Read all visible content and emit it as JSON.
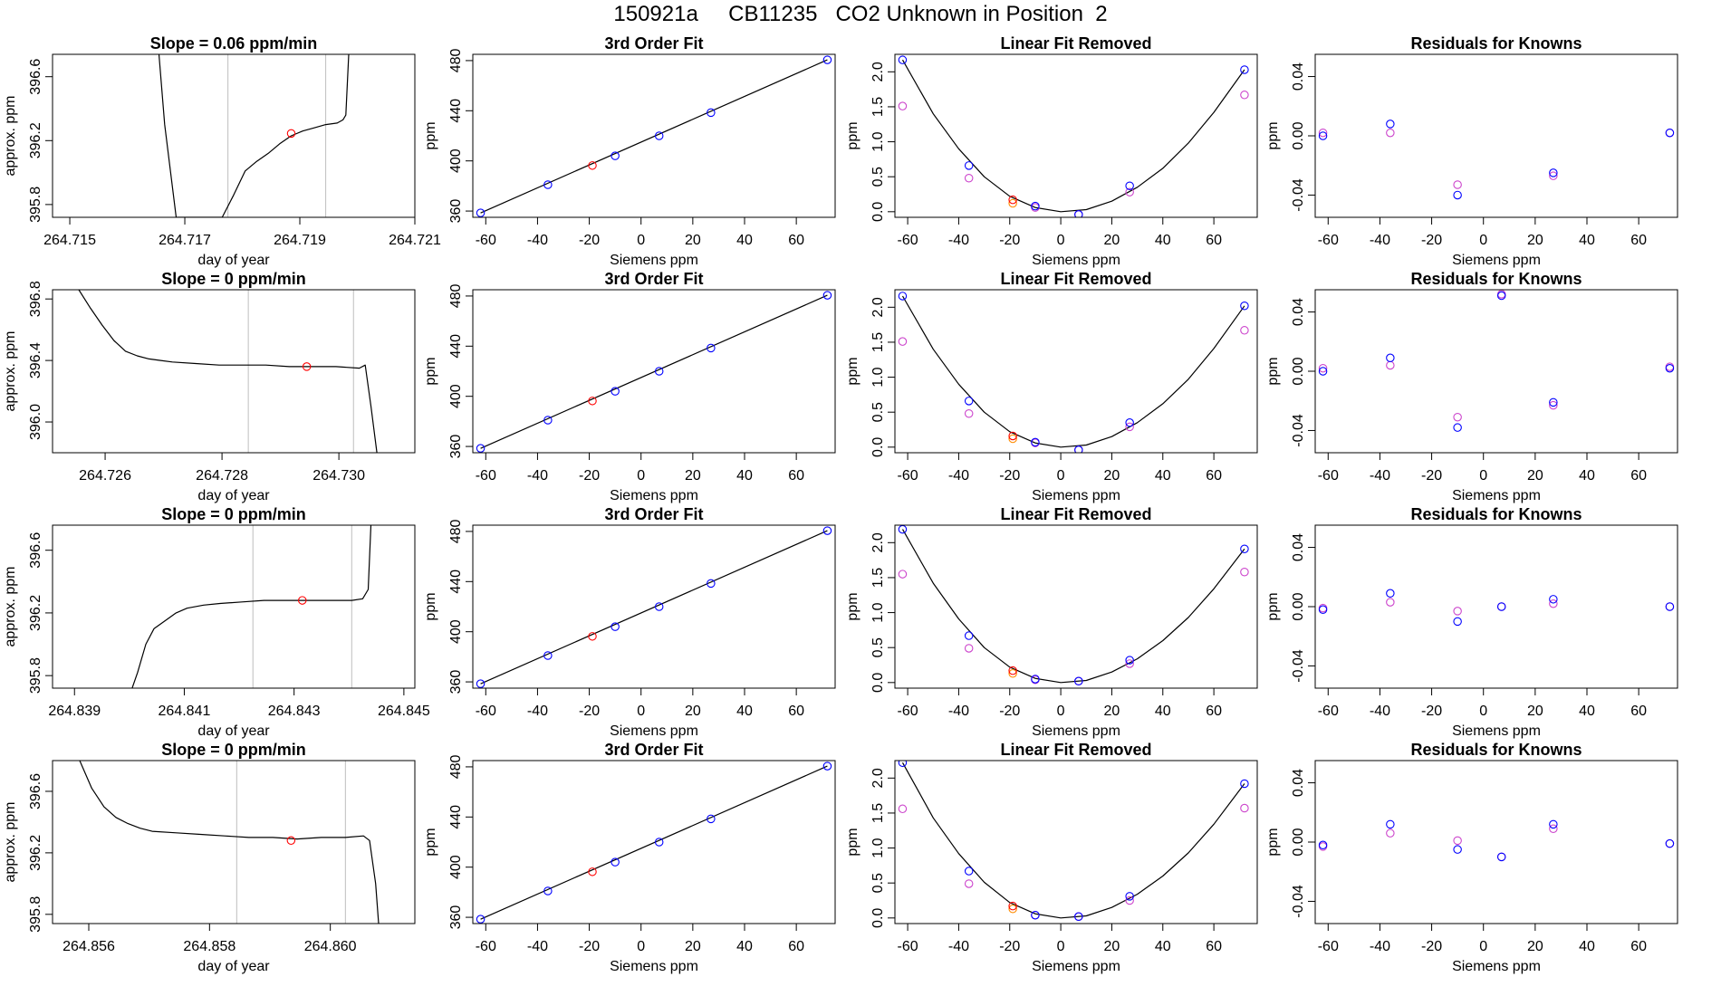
{
  "figure_title": "150921a     CB11235   CO2 Unknown in Position  2",
  "colors": {
    "trace": "#000000",
    "gridline": "#bebebe",
    "known": "#0000ff",
    "known_alt": "#cc44cc",
    "unknown": "#ff0000",
    "unknown_alt": "#ff8c00",
    "fit_line": "#000000"
  },
  "chart_data": [
    {
      "type": "line",
      "title": "Slope =  0.06  ppm/min",
      "xlabel": "day of year",
      "ylabel": "approx. ppm",
      "xlim": [
        264.7147,
        264.721
      ],
      "ylim": [
        395.72,
        396.74
      ],
      "xticks": [
        "264.715",
        "264.717",
        "264.719",
        "264.721"
      ],
      "yticks": [
        "395.8",
        "396.2",
        "396.6"
      ],
      "vlines": [
        264.71775,
        264.71945
      ],
      "marker": {
        "x": 264.71885,
        "y": 396.245
      },
      "trace_x": [
        264.71655,
        264.71665,
        264.71685,
        264.71705,
        264.71725,
        264.71745,
        264.71765,
        264.71785,
        264.71805,
        264.71825,
        264.71845,
        264.71865,
        264.71885,
        264.71905,
        264.71925,
        264.71945,
        264.71965,
        264.71975,
        264.7198,
        264.71985
      ],
      "trace_y": [
        396.74,
        396.3,
        395.72,
        395.72,
        395.72,
        395.72,
        395.72,
        395.86,
        396.01,
        396.07,
        396.12,
        396.18,
        396.23,
        396.26,
        396.28,
        396.3,
        396.31,
        396.33,
        396.36,
        396.74
      ]
    },
    {
      "type": "scatter",
      "title": "3rd Order Fit",
      "xlabel": "Siemens ppm",
      "ylabel": "ppm",
      "xlim": [
        -65,
        75
      ],
      "ylim": [
        355,
        485
      ],
      "xticks": [
        "-60",
        "-40",
        "-20",
        "0",
        "20",
        "40",
        "60"
      ],
      "yticks": [
        "360",
        "400",
        "440",
        "480"
      ],
      "fit_line": {
        "x": [
          -62,
          72
        ],
        "y": [
          358.5,
          480.6
        ]
      },
      "knowns": {
        "x": [
          -62,
          -36,
          -10,
          7,
          27,
          72
        ],
        "y": [
          358.5,
          381,
          404,
          420,
          438.5,
          480.6
        ]
      },
      "unknowns": {
        "x": [
          -18.8
        ],
        "y": [
          396.3
        ]
      }
    },
    {
      "type": "scatter",
      "title": "Linear Fit Removed",
      "xlabel": "Siemens ppm",
      "ylabel": "ppm",
      "xlim": [
        -65,
        77
      ],
      "ylim": [
        -0.08,
        2.25
      ],
      "xticks": [
        "-60",
        "-40",
        "-20",
        "0",
        "20",
        "40",
        "60"
      ],
      "yticks": [
        "0.0",
        "0.5",
        "1.0",
        "1.5",
        "2.0"
      ],
      "curve": {
        "x": [
          -62,
          -50,
          -40,
          -30,
          -20,
          -10,
          0,
          10,
          20,
          30,
          40,
          50,
          60,
          72
        ],
        "y": [
          2.17,
          1.4,
          0.9,
          0.5,
          0.22,
          0.06,
          0.0,
          0.03,
          0.15,
          0.35,
          0.62,
          0.98,
          1.42,
          2.03
        ]
      },
      "knowns": {
        "x": [
          -62,
          -36,
          -10,
          7,
          27,
          72
        ],
        "y": [
          2.17,
          0.66,
          0.08,
          -0.04,
          0.37,
          2.03
        ]
      },
      "knowns_alt": {
        "x": [
          -62,
          -36,
          -10,
          7,
          27,
          72
        ],
        "y": [
          1.51,
          0.48,
          0.06,
          -0.04,
          0.28,
          1.67
        ]
      },
      "unknowns": {
        "x": [
          -18.8
        ],
        "y": [
          0.17
        ]
      },
      "unknowns_alt": {
        "x": [
          -18.8
        ],
        "y": [
          0.12
        ]
      }
    },
    {
      "type": "scatter",
      "title": "Residuals for Knowns",
      "xlabel": "Siemens ppm",
      "ylabel": "ppm",
      "xlim": [
        -65,
        75
      ],
      "ylim": [
        -0.055,
        0.055
      ],
      "xticks": [
        "-60",
        "-40",
        "-20",
        "0",
        "20",
        "40",
        "60"
      ],
      "yticks": [
        "-0.04",
        "0.00",
        "0.04"
      ],
      "knowns": {
        "x": [
          -62,
          -36,
          -10,
          27,
          72
        ],
        "y": [
          0.0,
          0.008,
          -0.04,
          -0.025,
          0.002
        ]
      },
      "knowns_alt": {
        "x": [
          -62,
          -36,
          -10,
          27,
          72
        ],
        "y": [
          0.002,
          0.002,
          -0.033,
          -0.027,
          0.002
        ]
      }
    },
    {
      "type": "line",
      "title": "Slope =  0  ppm/min",
      "xlabel": "day of year",
      "ylabel": "approx. ppm",
      "xlim": [
        264.7251,
        264.7313
      ],
      "ylim": [
        395.8,
        396.86
      ],
      "xticks": [
        "264.726",
        "264.728",
        "264.730"
      ],
      "yticks": [
        "396.0",
        "396.4",
        "396.8"
      ],
      "vlines": [
        264.72845,
        264.73025
      ],
      "marker": {
        "x": 264.72945,
        "y": 396.36
      },
      "trace_x": [
        264.72555,
        264.72575,
        264.72595,
        264.72615,
        264.72635,
        264.72655,
        264.72675,
        264.72695,
        264.72715,
        264.72755,
        264.72795,
        264.72835,
        264.72875,
        264.72915,
        264.72955,
        264.72995,
        264.73035,
        264.73045,
        264.73055,
        264.73065
      ],
      "trace_y": [
        396.86,
        396.74,
        396.63,
        396.53,
        396.46,
        396.43,
        396.41,
        396.4,
        396.39,
        396.38,
        396.37,
        396.37,
        396.37,
        396.36,
        396.36,
        396.36,
        396.35,
        396.37,
        396.1,
        395.8
      ]
    },
    {
      "type": "scatter",
      "title": "3rd Order Fit",
      "xlabel": "Siemens ppm",
      "ylabel": "ppm",
      "xlim": [
        -65,
        75
      ],
      "ylim": [
        355,
        485
      ],
      "xticks": [
        "-60",
        "-40",
        "-20",
        "0",
        "20",
        "40",
        "60"
      ],
      "yticks": [
        "360",
        "400",
        "440",
        "480"
      ],
      "fit_line": {
        "x": [
          -62,
          72
        ],
        "y": [
          358.5,
          480.6
        ]
      },
      "knowns": {
        "x": [
          -62,
          -36,
          -10,
          7,
          27,
          72
        ],
        "y": [
          358.5,
          381,
          404,
          420,
          438.5,
          480.6
        ]
      },
      "unknowns": {
        "x": [
          -18.8
        ],
        "y": [
          396.3
        ]
      }
    },
    {
      "type": "scatter",
      "title": "Linear Fit Removed",
      "xlabel": "Siemens ppm",
      "ylabel": "ppm",
      "xlim": [
        -65,
        77
      ],
      "ylim": [
        -0.08,
        2.25
      ],
      "xticks": [
        "-60",
        "-40",
        "-20",
        "0",
        "20",
        "40",
        "60"
      ],
      "yticks": [
        "0.0",
        "0.5",
        "1.0",
        "1.5",
        "2.0"
      ],
      "curve": {
        "x": [
          -62,
          -50,
          -40,
          -30,
          -20,
          -10,
          0,
          10,
          20,
          30,
          40,
          50,
          60,
          72
        ],
        "y": [
          2.16,
          1.4,
          0.9,
          0.5,
          0.22,
          0.06,
          0.0,
          0.03,
          0.15,
          0.35,
          0.62,
          0.97,
          1.41,
          2.02
        ]
      },
      "knowns": {
        "x": [
          -62,
          -36,
          -10,
          7,
          27,
          72
        ],
        "y": [
          2.16,
          0.66,
          0.07,
          -0.04,
          0.35,
          2.02
        ]
      },
      "knowns_alt": {
        "x": [
          -62,
          -36,
          -10,
          7,
          27,
          72
        ],
        "y": [
          1.51,
          0.48,
          0.06,
          -0.04,
          0.29,
          1.67
        ]
      },
      "unknowns": {
        "x": [
          -18.8
        ],
        "y": [
          0.16
        ]
      },
      "unknowns_alt": {
        "x": [
          -18.8
        ],
        "y": [
          0.12
        ]
      }
    },
    {
      "type": "scatter",
      "title": "Residuals for Knowns",
      "xlabel": "Siemens ppm",
      "ylabel": "ppm",
      "xlim": [
        -65,
        75
      ],
      "ylim": [
        -0.055,
        0.055
      ],
      "xticks": [
        "-60",
        "-40",
        "-20",
        "0",
        "20",
        "40",
        "60"
      ],
      "yticks": [
        "-0.04",
        "0.00",
        "0.04"
      ],
      "knowns": {
        "x": [
          -62,
          -36,
          -10,
          7,
          27,
          72
        ],
        "y": [
          0.0,
          0.009,
          -0.038,
          0.051,
          -0.021,
          0.002
        ]
      },
      "knowns_alt": {
        "x": [
          -62,
          -36,
          -10,
          7,
          27,
          72
        ],
        "y": [
          0.002,
          0.004,
          -0.031,
          0.052,
          -0.023,
          0.003
        ]
      }
    },
    {
      "type": "line",
      "title": "Slope =  0  ppm/min",
      "xlabel": "day of year",
      "ylabel": "approx. ppm",
      "xlim": [
        264.8386,
        264.8452
      ],
      "ylim": [
        395.72,
        396.76
      ],
      "xticks": [
        "264.839",
        "264.841",
        "264.843",
        "264.845"
      ],
      "yticks": [
        "395.8",
        "396.2",
        "396.6"
      ],
      "vlines": [
        264.84225,
        264.84405
      ],
      "marker": {
        "x": 264.84315,
        "y": 396.28
      },
      "trace_x": [
        264.84005,
        264.84015,
        264.8403,
        264.84045,
        264.84065,
        264.84085,
        264.84105,
        264.84135,
        264.84165,
        264.84205,
        264.84245,
        264.84285,
        264.84325,
        264.84365,
        264.84405,
        264.84425,
        264.84435,
        264.8444
      ],
      "trace_y": [
        395.72,
        395.82,
        396.0,
        396.1,
        396.15,
        396.2,
        396.23,
        396.25,
        396.26,
        396.27,
        396.28,
        396.28,
        396.28,
        396.28,
        396.28,
        396.29,
        396.35,
        396.76
      ]
    },
    {
      "type": "scatter",
      "title": "3rd Order Fit",
      "xlabel": "Siemens ppm",
      "ylabel": "ppm",
      "xlim": [
        -65,
        75
      ],
      "ylim": [
        355,
        485
      ],
      "xticks": [
        "-60",
        "-40",
        "-20",
        "0",
        "20",
        "40",
        "60"
      ],
      "yticks": [
        "360",
        "400",
        "440",
        "480"
      ],
      "fit_line": {
        "x": [
          -62,
          72
        ],
        "y": [
          358.5,
          480.6
        ]
      },
      "knowns": {
        "x": [
          -62,
          -36,
          -10,
          7,
          27,
          72
        ],
        "y": [
          358.5,
          381,
          404,
          420,
          438.5,
          480.6
        ]
      },
      "unknowns": {
        "x": [
          -18.8
        ],
        "y": [
          396.3
        ]
      }
    },
    {
      "type": "scatter",
      "title": "Linear Fit Removed",
      "xlabel": "Siemens ppm",
      "ylabel": "ppm",
      "xlim": [
        -65,
        77
      ],
      "ylim": [
        -0.08,
        2.25
      ],
      "xticks": [
        "-60",
        "-40",
        "-20",
        "0",
        "20",
        "40",
        "60"
      ],
      "yticks": [
        "0.0",
        "0.5",
        "1.0",
        "1.5",
        "2.0"
      ],
      "curve": {
        "x": [
          -62,
          -50,
          -40,
          -30,
          -20,
          -10,
          0,
          10,
          20,
          30,
          40,
          50,
          60,
          72
        ],
        "y": [
          2.19,
          1.42,
          0.91,
          0.5,
          0.22,
          0.06,
          0.0,
          0.03,
          0.15,
          0.34,
          0.6,
          0.93,
          1.34,
          1.91
        ]
      },
      "knowns": {
        "x": [
          -62,
          -36,
          -10,
          7,
          27,
          72
        ],
        "y": [
          2.19,
          0.67,
          0.05,
          0.02,
          0.32,
          1.91
        ]
      },
      "knowns_alt": {
        "x": [
          -62,
          -36,
          -10,
          7,
          27,
          72
        ],
        "y": [
          1.55,
          0.49,
          0.04,
          0.02,
          0.27,
          1.58
        ]
      },
      "unknowns": {
        "x": [
          -18.8
        ],
        "y": [
          0.17
        ]
      },
      "unknowns_alt": {
        "x": [
          -18.8
        ],
        "y": [
          0.13
        ]
      }
    },
    {
      "type": "scatter",
      "title": "Residuals for Knowns",
      "xlabel": "Siemens ppm",
      "ylabel": "ppm",
      "xlim": [
        -65,
        75
      ],
      "ylim": [
        -0.055,
        0.055
      ],
      "xticks": [
        "-60",
        "-40",
        "-20",
        "0",
        "20",
        "40",
        "60"
      ],
      "yticks": [
        "-0.04",
        "0.00",
        "0.04"
      ],
      "knowns": {
        "x": [
          -62,
          -36,
          -10,
          7,
          27,
          72
        ],
        "y": [
          -0.002,
          0.009,
          -0.01,
          0.0,
          0.005,
          0.0
        ]
      },
      "knowns_alt": {
        "x": [
          -62,
          -36,
          -10,
          7,
          27,
          72
        ],
        "y": [
          -0.001,
          0.003,
          -0.003,
          0.0,
          0.002,
          0.0
        ]
      }
    },
    {
      "type": "line",
      "title": "Slope =  0  ppm/min",
      "xlabel": "day of year",
      "ylabel": "approx. ppm",
      "xlim": [
        264.8554,
        264.8614
      ],
      "ylim": [
        395.74,
        396.8
      ],
      "xticks": [
        "264.856",
        "264.858",
        "264.860"
      ],
      "yticks": [
        "395.8",
        "396.2",
        "396.6"
      ],
      "vlines": [
        264.85845,
        264.86025
      ],
      "marker": {
        "x": 264.85935,
        "y": 396.28
      },
      "trace_x": [
        264.85585,
        264.85605,
        264.85625,
        264.85645,
        264.85665,
        264.85685,
        264.85705,
        264.85745,
        264.85785,
        264.85825,
        264.85865,
        264.85905,
        264.85945,
        264.85985,
        264.86025,
        264.86055,
        264.86065,
        264.86075,
        264.8608
      ],
      "trace_y": [
        396.8,
        396.62,
        396.5,
        396.43,
        396.39,
        396.36,
        396.34,
        396.33,
        396.32,
        396.31,
        396.3,
        396.3,
        396.29,
        396.3,
        396.3,
        396.31,
        396.28,
        396.0,
        395.74
      ]
    },
    {
      "type": "scatter",
      "title": "3rd Order Fit",
      "xlabel": "Siemens ppm",
      "ylabel": "ppm",
      "xlim": [
        -65,
        75
      ],
      "ylim": [
        355,
        485
      ],
      "xticks": [
        "-60",
        "-40",
        "-20",
        "0",
        "20",
        "40",
        "60"
      ],
      "yticks": [
        "360",
        "400",
        "440",
        "480"
      ],
      "fit_line": {
        "x": [
          -62,
          72
        ],
        "y": [
          358.5,
          480.6
        ]
      },
      "knowns": {
        "x": [
          -62,
          -36,
          -10,
          7,
          27,
          72
        ],
        "y": [
          358.5,
          381,
          404,
          420,
          438.5,
          480.6
        ]
      },
      "unknowns": {
        "x": [
          -18.8
        ],
        "y": [
          396.3
        ]
      }
    },
    {
      "type": "scatter",
      "title": "Linear Fit Removed",
      "xlabel": "Siemens ppm",
      "ylabel": "ppm",
      "xlim": [
        -65,
        77
      ],
      "ylim": [
        -0.08,
        2.25
      ],
      "xticks": [
        "-60",
        "-40",
        "-20",
        "0",
        "20",
        "40",
        "60"
      ],
      "yticks": [
        "0.0",
        "0.5",
        "1.0",
        "1.5",
        "2.0"
      ],
      "curve": {
        "x": [
          -62,
          -50,
          -40,
          -30,
          -20,
          -10,
          0,
          10,
          20,
          30,
          40,
          50,
          60,
          72
        ],
        "y": [
          2.22,
          1.43,
          0.92,
          0.51,
          0.22,
          0.06,
          0.0,
          0.03,
          0.15,
          0.34,
          0.6,
          0.93,
          1.34,
          1.92
        ]
      },
      "knowns": {
        "x": [
          -62,
          -36,
          -10,
          7,
          27,
          72
        ],
        "y": [
          2.22,
          0.67,
          0.04,
          0.02,
          0.31,
          1.92
        ]
      },
      "knowns_alt": {
        "x": [
          -62,
          -36,
          -10,
          7,
          27,
          72
        ],
        "y": [
          1.56,
          0.49,
          0.04,
          0.02,
          0.25,
          1.57
        ]
      },
      "unknowns": {
        "x": [
          -18.8
        ],
        "y": [
          0.17
        ]
      },
      "unknowns_alt": {
        "x": [
          -18.8
        ],
        "y": [
          0.13
        ]
      }
    },
    {
      "type": "scatter",
      "title": "Residuals for Knowns",
      "xlabel": "Siemens ppm",
      "ylabel": "ppm",
      "xlim": [
        -65,
        75
      ],
      "ylim": [
        -0.055,
        0.055
      ],
      "xticks": [
        "-60",
        "-40",
        "-20",
        "0",
        "20",
        "40",
        "60"
      ],
      "yticks": [
        "-0.04",
        "0.00",
        "0.04"
      ],
      "knowns": {
        "x": [
          -62,
          -36,
          -10,
          7,
          27,
          72
        ],
        "y": [
          -0.002,
          0.012,
          -0.005,
          -0.01,
          0.012,
          -0.001
        ]
      },
      "knowns_alt": {
        "x": [
          -62,
          -36,
          -10,
          7,
          27,
          72
        ],
        "y": [
          -0.003,
          0.006,
          0.001,
          -0.01,
          0.009,
          -0.001
        ]
      }
    }
  ]
}
